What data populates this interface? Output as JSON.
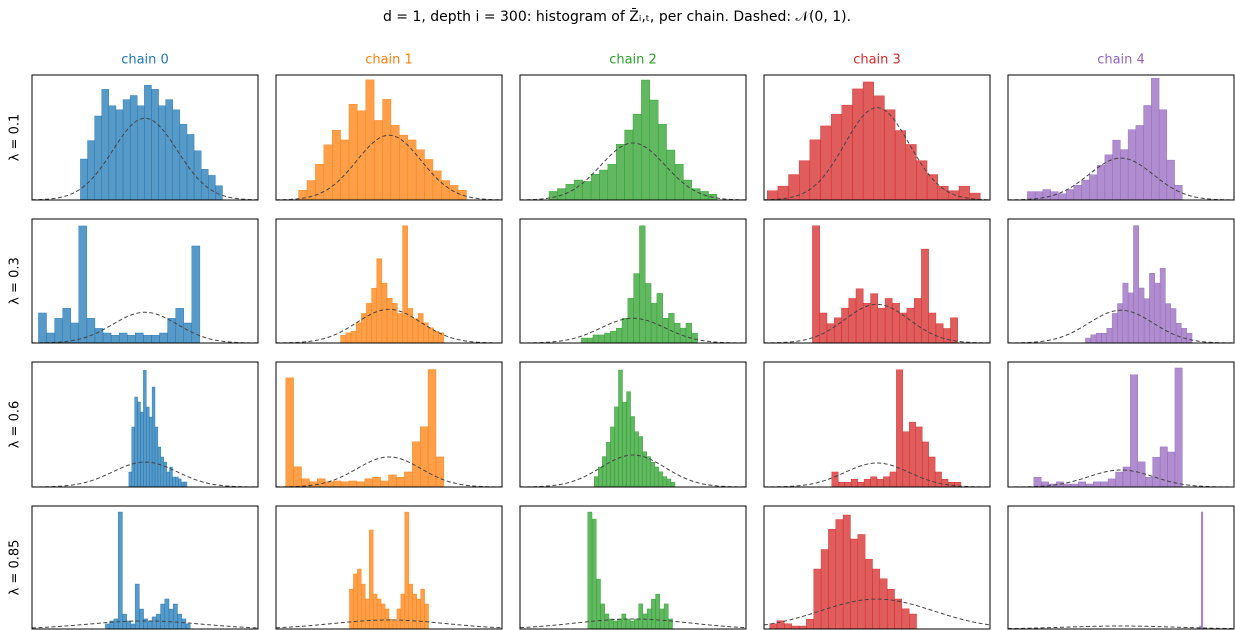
{
  "title": "d = 1, depth i = 300: histogram of Z̄ᵢ,ₜ, per chain. Dashed: 𝒩(0, 1).",
  "reference": {
    "mean": 0,
    "sd": 1
  },
  "chart_data": [
    {
      "type": "histogram",
      "title": "chain 0",
      "ylabel": "λ = 0.1",
      "color": "#1f77b4",
      "xlim": [
        -3.5,
        3.5
      ],
      "ylim": [
        0,
        0.61
      ],
      "bins": [
        -2,
        -1.78,
        -1.56,
        -1.34,
        -1.12,
        -0.9,
        -0.68,
        -0.46,
        -0.24,
        -0.02,
        0.2,
        0.42,
        0.64,
        0.86,
        1.08,
        1.3,
        1.52,
        1.74,
        1.96,
        2.18,
        2.4
      ],
      "values": [
        0.2,
        0.29,
        0.41,
        0.54,
        0.46,
        0.44,
        0.49,
        0.51,
        0.46,
        0.56,
        0.54,
        0.46,
        0.49,
        0.44,
        0.37,
        0.32,
        0.24,
        0.15,
        0.12,
        0.07
      ]
    },
    {
      "type": "histogram",
      "title": "chain 1",
      "color": "#ff7f0e",
      "xlim": [
        -3.5,
        3.5
      ],
      "ylim": [
        0,
        0.77
      ],
      "bins": [
        -2.8,
        -2.54,
        -2.28,
        -2.02,
        -1.76,
        -1.5,
        -1.24,
        -0.98,
        -0.72,
        -0.46,
        -0.2,
        0.06,
        0.32,
        0.58,
        0.84,
        1.1,
        1.36,
        1.62,
        1.88,
        2.14,
        2.4
      ],
      "values": [
        0.06,
        0.12,
        0.22,
        0.34,
        0.43,
        0.37,
        0.59,
        0.55,
        0.74,
        0.49,
        0.62,
        0.46,
        0.4,
        0.37,
        0.31,
        0.25,
        0.18,
        0.12,
        0.09,
        0.06
      ]
    },
    {
      "type": "histogram",
      "title": "chain 2",
      "color": "#2ca02c",
      "xlim": [
        -3.5,
        3.5
      ],
      "ylim": [
        0,
        0.875
      ],
      "bins": [
        -2.6,
        -2.34,
        -2.08,
        -1.82,
        -1.56,
        -1.3,
        -1.04,
        -0.78,
        -0.52,
        -0.26,
        0,
        0.26,
        0.52,
        0.78,
        1.04,
        1.3,
        1.56,
        1.82,
        2.08,
        2.34,
        2.6
      ],
      "values": [
        0.06,
        0.08,
        0.11,
        0.14,
        0.13,
        0.18,
        0.21,
        0.25,
        0.39,
        0.49,
        0.6,
        0.84,
        0.7,
        0.53,
        0.35,
        0.25,
        0.14,
        0.08,
        0.06,
        0.04
      ]
    },
    {
      "type": "histogram",
      "title": "chain 3",
      "color": "#d62728",
      "xlim": [
        -3.5,
        3.5
      ],
      "ylim": [
        0,
        0.54
      ],
      "bins": [
        -3.4,
        -3.07,
        -2.74,
        -2.41,
        -2.08,
        -1.75,
        -1.42,
        -1.09,
        -0.76,
        -0.43,
        -0.1,
        0.23,
        0.56,
        0.89,
        1.22,
        1.55,
        1.88,
        2.21,
        2.54,
        2.87,
        3.2
      ],
      "values": [
        0.04,
        0.06,
        0.11,
        0.17,
        0.26,
        0.32,
        0.37,
        0.41,
        0.48,
        0.51,
        0.45,
        0.39,
        0.3,
        0.24,
        0.17,
        0.11,
        0.06,
        0.04,
        0.06,
        0.03
      ]
    },
    {
      "type": "histogram",
      "title": "chain 4",
      "color": "#9467bd",
      "xlim": [
        -3.5,
        3.5
      ],
      "ylim": [
        0,
        1.19
      ],
      "bins": [
        -2.9,
        -2.66,
        -2.42,
        -2.18,
        -1.94,
        -1.7,
        -1.46,
        -1.22,
        -0.98,
        -0.74,
        -0.5,
        -0.26,
        -0.02,
        0.22,
        0.46,
        0.7,
        0.94,
        1.18,
        1.42,
        1.66,
        1.9
      ],
      "values": [
        0.08,
        0.08,
        0.1,
        0.08,
        0.06,
        0.1,
        0.14,
        0.19,
        0.24,
        0.33,
        0.43,
        0.57,
        0.48,
        0.67,
        0.71,
        0.9,
        1.16,
        0.86,
        0.38,
        0.14
      ]
    },
    {
      "type": "histogram",
      "ylabel": "λ = 0.3",
      "color": "#1f77b4",
      "xlim": [
        -3.5,
        3.5
      ],
      "ylim": [
        0,
        1.61
      ],
      "bins": [
        -3.3,
        -3.05,
        -2.8,
        -2.55,
        -2.3,
        -2.05,
        -1.8,
        -1.55,
        -1.3,
        -1.05,
        -0.8,
        -0.55,
        -0.3,
        -0.05,
        0.2,
        0.45,
        0.7,
        0.95,
        1.2,
        1.45,
        1.7
      ],
      "values": [
        0.39,
        0.13,
        0.32,
        0.45,
        0.26,
        1.52,
        0.32,
        0.19,
        0.13,
        0.1,
        0.13,
        0.1,
        0.13,
        0.1,
        0.1,
        0.13,
        0.32,
        0.45,
        0.26,
        1.26
      ]
    },
    {
      "type": "histogram",
      "color": "#ff7f0e",
      "xlim": [
        -3.5,
        3.5
      ],
      "ylim": [
        0,
        1.47
      ],
      "bins": [
        -1.5,
        -1.34,
        -1.18,
        -1.02,
        -0.86,
        -0.7,
        -0.54,
        -0.38,
        -0.22,
        -0.06,
        0.1,
        0.26,
        0.42,
        0.58,
        0.74,
        0.9,
        1.06,
        1.22,
        1.38,
        1.54,
        1.7
      ],
      "values": [
        0.09,
        0.12,
        0.14,
        0.24,
        0.35,
        0.47,
        0.65,
        1.0,
        0.71,
        0.53,
        0.47,
        0.35,
        1.39,
        0.41,
        0.29,
        0.35,
        0.24,
        0.18,
        0.14,
        0.12
      ]
    },
    {
      "type": "histogram",
      "color": "#2ca02c",
      "xlim": [
        -3.5,
        3.5
      ],
      "ylim": [
        0,
        2.0
      ],
      "bins": [
        -1.6,
        -1.42,
        -1.24,
        -1.06,
        -0.88,
        -0.7,
        -0.52,
        -0.34,
        -0.16,
        0.02,
        0.2,
        0.38,
        0.56,
        0.74,
        0.92,
        1.1,
        1.28,
        1.46,
        1.64,
        1.82,
        2.0
      ],
      "values": [
        0.08,
        0.08,
        0.13,
        0.13,
        0.16,
        0.19,
        0.24,
        0.4,
        0.72,
        1.12,
        1.89,
        0.96,
        0.64,
        0.8,
        0.4,
        0.48,
        0.32,
        0.24,
        0.32,
        0.16
      ]
    },
    {
      "type": "histogram",
      "color": "#d62728",
      "xlim": [
        -3.5,
        3.5
      ],
      "ylim": [
        0,
        1.28
      ],
      "bins": [
        -2,
        -1.775,
        -1.55,
        -1.325,
        -1.1,
        -0.875,
        -0.65,
        -0.425,
        -0.2,
        0.025,
        0.25,
        0.475,
        0.7,
        0.925,
        1.15,
        1.375,
        1.6,
        1.825,
        2.05,
        2.275,
        2.5
      ],
      "values": [
        1.21,
        0.31,
        0.2,
        0.26,
        0.36,
        0.46,
        0.56,
        0.41,
        0.51,
        0.36,
        0.46,
        0.41,
        0.31,
        0.36,
        0.46,
        0.97,
        0.31,
        0.2,
        0.15,
        0.26
      ]
    },
    {
      "type": "histogram",
      "color": "#9467bd",
      "xlim": [
        -3.5,
        3.5
      ],
      "ylim": [
        0,
        1.51
      ],
      "bins": [
        -1.1,
        -0.935,
        -0.77,
        -0.605,
        -0.44,
        -0.275,
        -0.11,
        0.055,
        0.22,
        0.385,
        0.55,
        0.715,
        0.88,
        1.045,
        1.21,
        1.375,
        1.54,
        1.705,
        1.87,
        2.035,
        2.2
      ],
      "values": [
        0.06,
        0.1,
        0.12,
        0.12,
        0.18,
        0.36,
        0.48,
        0.73,
        0.61,
        1.43,
        0.67,
        0.54,
        0.85,
        0.73,
        0.91,
        0.48,
        0.42,
        0.24,
        0.18,
        0.12
      ]
    },
    {
      "type": "histogram",
      "ylabel": "λ = 0.6",
      "color": "#1f77b4",
      "xlim": [
        -3.5,
        3.5
      ],
      "ylim": [
        0,
        2.0
      ],
      "bins": [
        -0.5,
        -0.41,
        -0.32,
        -0.23,
        -0.14,
        -0.05,
        0.04,
        0.13,
        0.22,
        0.31,
        0.4,
        0.49,
        0.58,
        0.67,
        0.76,
        0.85,
        0.94,
        1.03,
        1.12,
        1.21,
        1.3
      ],
      "values": [
        0.24,
        0.96,
        1.44,
        1.36,
        1.2,
        1.87,
        1.28,
        1.12,
        1.6,
        0.96,
        0.64,
        0.48,
        0.4,
        0.24,
        0.32,
        0.16,
        0.16,
        0.13,
        0.08,
        0.08
      ]
    },
    {
      "type": "histogram",
      "color": "#ff7f0e",
      "xlim": [
        -3.5,
        3.5
      ],
      "ylim": [
        0,
        1.66
      ],
      "bins": [
        -3.2,
        -2.955,
        -2.71,
        -2.465,
        -2.22,
        -1.975,
        -1.73,
        -1.485,
        -1.24,
        -0.995,
        -0.75,
        -0.505,
        -0.26,
        -0.015,
        0.23,
        0.475,
        0.72,
        0.965,
        1.21,
        1.455,
        1.7
      ],
      "values": [
        1.45,
        0.27,
        0.11,
        0.07,
        0.11,
        0.07,
        0.08,
        0.07,
        0.08,
        0.07,
        0.11,
        0.13,
        0.08,
        0.16,
        0.13,
        0.2,
        0.6,
        0.8,
        1.56,
        0.4
      ]
    },
    {
      "type": "histogram",
      "color": "#2ca02c",
      "xlim": [
        -3.5,
        3.5
      ],
      "ylim": [
        0,
        1.56
      ],
      "bins": [
        -1.2,
        -1.075,
        -0.95,
        -0.825,
        -0.7,
        -0.575,
        -0.45,
        -0.325,
        -0.2,
        -0.075,
        0.05,
        0.175,
        0.3,
        0.425,
        0.55,
        0.675,
        0.8,
        0.925,
        1.05,
        1.175,
        1.3
      ],
      "values": [
        0.13,
        0.25,
        0.38,
        0.56,
        0.75,
        1.0,
        1.46,
        1.06,
        1.19,
        0.88,
        0.69,
        0.63,
        0.44,
        0.38,
        0.31,
        0.25,
        0.19,
        0.13,
        0.1,
        0.06
      ]
    },
    {
      "type": "histogram",
      "color": "#d62728",
      "xlim": [
        -3.5,
        3.5
      ],
      "ylim": [
        0,
        2.08
      ],
      "bins": [
        -1.4,
        -1.2,
        -1,
        -0.8,
        -0.6,
        -0.4,
        -0.2,
        0,
        0.2,
        0.4,
        0.6,
        0.8,
        1,
        1.2,
        1.4,
        1.6,
        1.8,
        2,
        2.2,
        2.4,
        2.6
      ],
      "values": [
        0.25,
        0.08,
        0.08,
        0.13,
        0.08,
        0.13,
        0.17,
        0.13,
        0.17,
        0.25,
        1.95,
        0.92,
        1.08,
        1.0,
        0.75,
        0.5,
        0.25,
        0.13,
        0.08,
        0.08
      ]
    },
    {
      "type": "histogram",
      "color": "#9467bd",
      "xlim": [
        -3.5,
        3.5
      ],
      "ylim": [
        0,
        2.93
      ],
      "bins": [
        -2.7,
        -2.47,
        -2.24,
        -2.01,
        -1.78,
        -1.55,
        -1.32,
        -1.09,
        -0.86,
        -0.63,
        -0.4,
        -0.17,
        0.06,
        0.29,
        0.52,
        0.75,
        0.98,
        1.21,
        1.44,
        1.67,
        1.9
      ],
      "values": [
        0.23,
        0.12,
        0.07,
        0.12,
        0.07,
        0.07,
        0.12,
        0.07,
        0.12,
        0.12,
        0.19,
        0.35,
        0.47,
        2.63,
        0.59,
        0.23,
        0.7,
        0.94,
        0.82,
        2.79
      ]
    },
    {
      "type": "histogram",
      "ylabel": "λ = 0.85",
      "color": "#1f77b4",
      "xlim": [
        -2,
        2
      ],
      "ylim": [
        0,
        6.1
      ],
      "bins": [
        -0.7,
        -0.625,
        -0.55,
        -0.475,
        -0.4,
        -0.325,
        -0.25,
        -0.175,
        -0.1,
        -0.025,
        0.05,
        0.125,
        0.2,
        0.275,
        0.35,
        0.425,
        0.5,
        0.575,
        0.65,
        0.725,
        0.8
      ],
      "values": [
        0.25,
        0.4,
        0.5,
        5.8,
        0.74,
        0.4,
        0.25,
        2.23,
        0.99,
        0.5,
        0.4,
        0.6,
        0.74,
        1.24,
        1.49,
        0.99,
        1.24,
        0.74,
        0.5,
        0.25
      ]
    },
    {
      "type": "histogram",
      "color": "#ff7f0e",
      "xlim": [
        -2,
        2
      ],
      "ylim": [
        0,
        5.45
      ],
      "bins": [
        -0.7,
        -0.63,
        -0.56,
        -0.49,
        -0.42,
        -0.35,
        -0.28,
        -0.21,
        -0.14,
        -0.07,
        0,
        0.07,
        0.14,
        0.21,
        0.28,
        0.35,
        0.42,
        0.49,
        0.56,
        0.63,
        0.7
      ],
      "values": [
        1.77,
        2.44,
        2.66,
        1.99,
        1.33,
        4.39,
        1.55,
        1.33,
        1.11,
        0.89,
        0.44,
        0.35,
        0.89,
        1.55,
        5.18,
        1.99,
        1.55,
        1.33,
        1.77,
        1.11
      ]
    },
    {
      "type": "histogram",
      "color": "#2ca02c",
      "xlim": [
        -2,
        2
      ],
      "ylim": [
        0,
        4.9
      ],
      "bins": [
        -0.8,
        -0.725,
        -0.65,
        -0.575,
        -0.5,
        -0.425,
        -0.35,
        -0.275,
        -0.2,
        -0.125,
        -0.05,
        0.025,
        0.1,
        0.175,
        0.25,
        0.325,
        0.4,
        0.475,
        0.55,
        0.625,
        0.7
      ],
      "values": [
        4.66,
        4.38,
        1.99,
        1.0,
        0.6,
        0.4,
        0.32,
        0.4,
        0.6,
        0.4,
        0.32,
        0.4,
        1.0,
        0.6,
        0.8,
        1.19,
        1.39,
        0.8,
        1.0,
        0.4
      ]
    },
    {
      "type": "histogram",
      "color": "#d62728",
      "xlim": [
        -2,
        2
      ],
      "ylim": [
        0,
        1.64
      ],
      "bins": [
        -1.9,
        -1.77,
        -1.64,
        -1.51,
        -1.38,
        -1.25,
        -1.12,
        -0.99,
        -0.86,
        -0.73,
        -0.6,
        -0.47,
        -0.34,
        -0.21,
        -0.08,
        0.05,
        0.18,
        0.31,
        0.44,
        0.57,
        0.7
      ],
      "values": [
        0.07,
        0.11,
        0.07,
        0.04,
        0.04,
        0.13,
        0.8,
        1.06,
        1.33,
        1.46,
        1.52,
        1.2,
        1.26,
        0.93,
        0.8,
        0.67,
        0.53,
        0.4,
        0.27,
        0.2
      ]
    },
    {
      "type": "histogram",
      "color": "#9467bd",
      "xlim": [
        -2,
        2
      ],
      "ylim": [
        0,
        16.4
      ],
      "bins": [
        1,
        1.03,
        1.06,
        1.09,
        1.12,
        1.15,
        1.18,
        1.21,
        1.24,
        1.27,
        1.3,
        1.33,
        1.36,
        1.39,
        1.42,
        1.45,
        1.48,
        1.51,
        1.54,
        1.57,
        1.6
      ],
      "values": [
        0,
        0,
        0,
        0,
        0,
        0,
        0,
        0,
        0,
        0,
        0,
        0,
        0,
        0.4,
        15.6,
        0,
        0,
        0,
        0,
        0
      ]
    }
  ]
}
